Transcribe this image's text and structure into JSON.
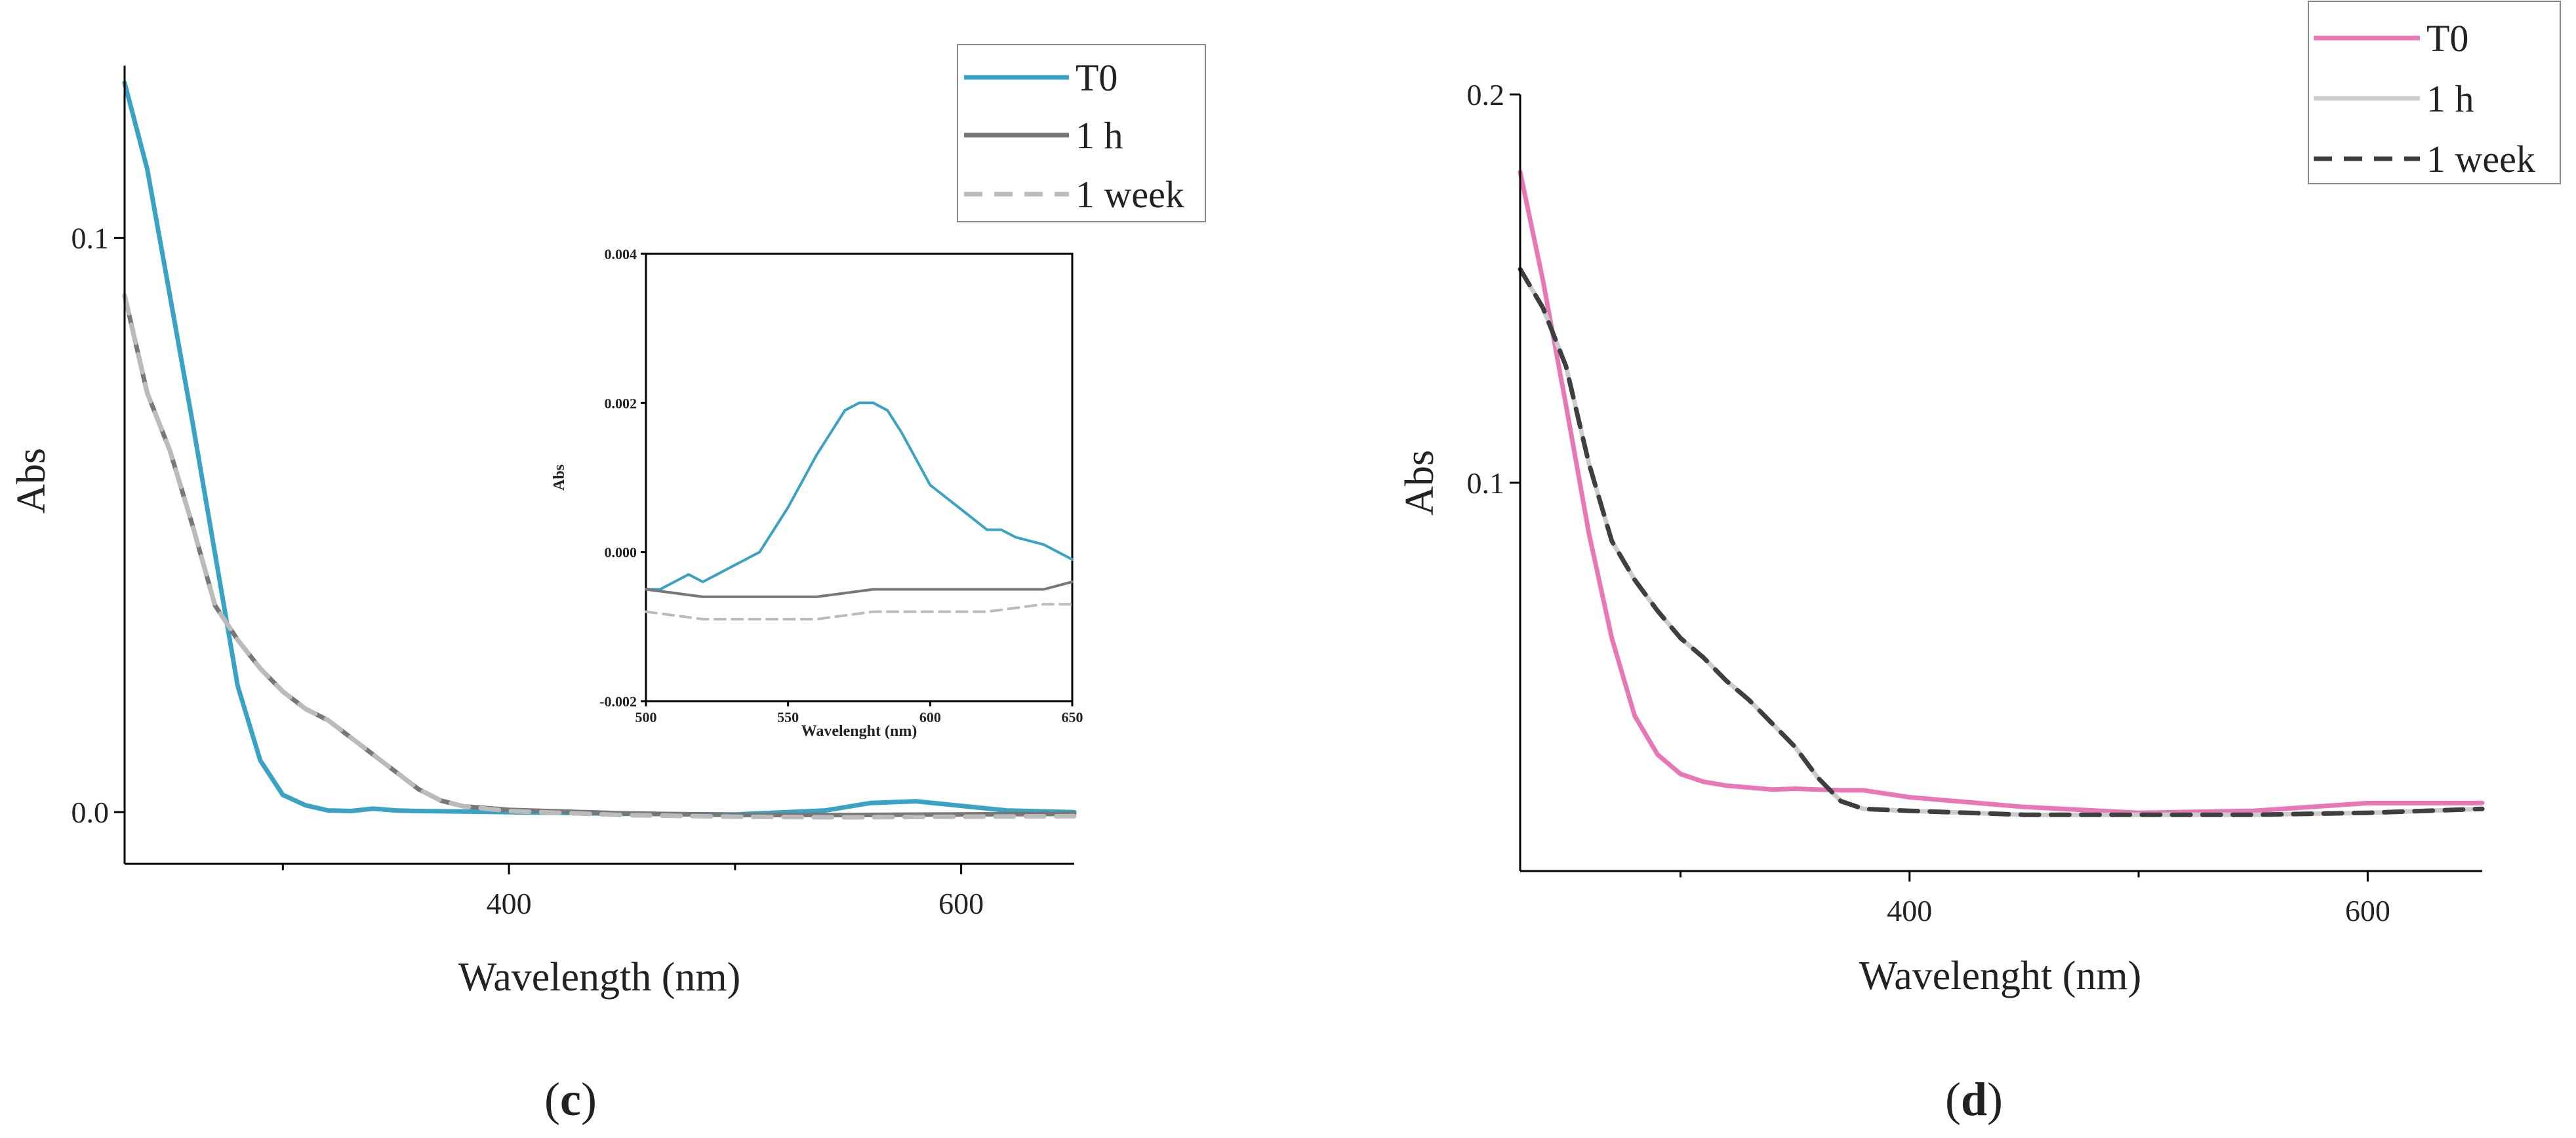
{
  "chart_data": [
    {
      "type": "line",
      "panel_label": "(c)",
      "panel_label_parts": [
        "(",
        "c",
        ")"
      ],
      "title": "",
      "xlabel": "Wavelength (nm)",
      "ylabel": "Abs",
      "xlim": [
        230,
        650
      ],
      "ylim": [
        -0.009,
        0.13
      ],
      "xticks": [
        400,
        600
      ],
      "xtick_labels": [
        "400",
        "600"
      ],
      "xminor": [
        300,
        500
      ],
      "yticks": [
        0.0,
        0.1
      ],
      "ytick_labels": [
        "0.0",
        "0.1"
      ],
      "grid": false,
      "legend": {
        "placement": "top-right",
        "entries": [
          "T0",
          "1 h",
          "1 week"
        ]
      },
      "series": [
        {
          "name": "T0",
          "color": "#3aa3c4",
          "dash": "solid",
          "x": [
            230,
            240,
            250,
            260,
            270,
            280,
            290,
            300,
            310,
            320,
            330,
            340,
            350,
            360,
            380,
            400,
            450,
            500,
            540,
            560,
            580,
            600,
            620,
            650
          ],
          "values": [
            0.127,
            0.112,
            0.09,
            0.068,
            0.045,
            0.022,
            0.009,
            0.003,
            0.0012,
            0.0003,
            0.0002,
            0.0006,
            0.0003,
            0.0002,
            0.0001,
            0.0,
            -0.0003,
            -0.0004,
            0.0003,
            0.0016,
            0.0019,
            0.0011,
            0.0003,
            0.0
          ]
        },
        {
          "name": "1 h",
          "color": "#777777",
          "dash": "solid",
          "x": [
            230,
            240,
            250,
            260,
            270,
            280,
            290,
            300,
            310,
            320,
            330,
            340,
            350,
            360,
            370,
            380,
            400,
            450,
            500,
            550,
            600,
            650
          ],
          "values": [
            0.09,
            0.073,
            0.063,
            0.05,
            0.036,
            0.03,
            0.025,
            0.021,
            0.018,
            0.016,
            0.013,
            0.01,
            0.007,
            0.004,
            0.002,
            0.001,
            0.0004,
            -0.0002,
            -0.0005,
            -0.0005,
            -0.0004,
            -0.0003
          ]
        },
        {
          "name": "1 week",
          "color": "#bbbbbb",
          "dash": "dashed",
          "x": [
            230,
            240,
            250,
            260,
            270,
            280,
            290,
            300,
            310,
            320,
            330,
            340,
            350,
            360,
            370,
            380,
            400,
            450,
            500,
            550,
            600,
            650
          ],
          "values": [
            0.09,
            0.073,
            0.063,
            0.05,
            0.036,
            0.03,
            0.025,
            0.021,
            0.018,
            0.016,
            0.013,
            0.01,
            0.007,
            0.004,
            0.002,
            0.001,
            0.0002,
            -0.0005,
            -0.0008,
            -0.0009,
            -0.0008,
            -0.0007
          ]
        }
      ],
      "inset": {
        "type": "line",
        "xlabel": "Wavelenght (nm)",
        "ylabel": "Abs",
        "xlim": [
          500,
          650
        ],
        "ylim": [
          -0.002,
          0.004
        ],
        "xticks": [
          500,
          550,
          600,
          650
        ],
        "xtick_labels": [
          "500",
          "550",
          "600",
          "650"
        ],
        "yticks": [
          -0.002,
          0.0,
          0.002,
          0.004
        ],
        "ytick_labels": [
          "-0.002",
          "0.000",
          "0.002",
          "0.004"
        ],
        "series": [
          {
            "name": "T0",
            "color": "#3aa3c4",
            "dash": "solid",
            "x": [
              500,
              505,
              510,
              515,
              520,
              525,
              530,
              540,
              550,
              560,
              570,
              575,
              580,
              585,
              590,
              600,
              610,
              620,
              625,
              630,
              640,
              650
            ],
            "values": [
              -0.0005,
              -0.0005,
              -0.0004,
              -0.0003,
              -0.0004,
              -0.0003,
              -0.0002,
              0.0,
              0.0006,
              0.0013,
              0.0019,
              0.002,
              0.002,
              0.0019,
              0.0016,
              0.0009,
              0.0006,
              0.0003,
              0.0003,
              0.0002,
              0.0001,
              -0.0001
            ]
          },
          {
            "name": "1 h",
            "color": "#777777",
            "dash": "solid",
            "x": [
              500,
              520,
              540,
              560,
              580,
              600,
              620,
              640,
              650
            ],
            "values": [
              -0.0005,
              -0.0006,
              -0.0006,
              -0.0006,
              -0.0005,
              -0.0005,
              -0.0005,
              -0.0005,
              -0.0004
            ]
          },
          {
            "name": "1 week",
            "color": "#bbbbbb",
            "dash": "dashed",
            "x": [
              500,
              520,
              540,
              560,
              580,
              600,
              620,
              640,
              650
            ],
            "values": [
              -0.0008,
              -0.0009,
              -0.0009,
              -0.0009,
              -0.0008,
              -0.0008,
              -0.0008,
              -0.0007,
              -0.0007
            ]
          }
        ]
      }
    },
    {
      "type": "line",
      "panel_label": "(d)",
      "panel_label_parts": [
        "(",
        "d",
        ")"
      ],
      "title": "",
      "xlabel": "Wavelenght (nm)",
      "ylabel": "Abs",
      "xlim": [
        230,
        650
      ],
      "ylim": [
        -0.0,
        0.2
      ],
      "xticks": [
        400,
        600
      ],
      "xtick_labels": [
        "400",
        "600"
      ],
      "xminor": [
        300,
        500
      ],
      "yticks": [
        0.1,
        0.2
      ],
      "ytick_labels": [
        "0.1",
        "0.2"
      ],
      "grid": false,
      "legend": {
        "placement": "top-right",
        "entries": [
          "T0",
          "1 h",
          "1 week"
        ]
      },
      "series": [
        {
          "name": "T0",
          "color": "#e877b8",
          "dash": "solid",
          "x": [
            230,
            240,
            250,
            260,
            270,
            280,
            290,
            300,
            310,
            320,
            330,
            340,
            350,
            360,
            370,
            380,
            400,
            450,
            500,
            550,
            600,
            650
          ],
          "values": [
            0.18,
            0.152,
            0.12,
            0.087,
            0.06,
            0.04,
            0.03,
            0.025,
            0.023,
            0.022,
            0.0215,
            0.021,
            0.0212,
            0.021,
            0.0208,
            0.0208,
            0.019,
            0.0165,
            0.015,
            0.0155,
            0.0175,
            0.0175
          ]
        },
        {
          "name": "1 h",
          "color": "#cccccc",
          "dash": "solid",
          "x": [
            230,
            240,
            250,
            260,
            270,
            280,
            290,
            300,
            310,
            320,
            330,
            340,
            350,
            360,
            370,
            380,
            400,
            450,
            500,
            550,
            600,
            650
          ],
          "values": [
            0.155,
            0.145,
            0.13,
            0.105,
            0.085,
            0.075,
            0.067,
            0.06,
            0.055,
            0.049,
            0.044,
            0.038,
            0.032,
            0.024,
            0.018,
            0.016,
            0.0155,
            0.0145,
            0.0145,
            0.0145,
            0.015,
            0.016
          ]
        },
        {
          "name": "1 week",
          "color": "#3f3f3f",
          "dash": "dashed",
          "x": [
            230,
            240,
            250,
            260,
            270,
            280,
            290,
            300,
            310,
            320,
            330,
            340,
            350,
            360,
            370,
            380,
            400,
            450,
            500,
            550,
            600,
            650
          ],
          "values": [
            0.155,
            0.145,
            0.13,
            0.105,
            0.085,
            0.075,
            0.067,
            0.06,
            0.055,
            0.049,
            0.044,
            0.038,
            0.032,
            0.024,
            0.018,
            0.016,
            0.0155,
            0.0145,
            0.0145,
            0.0145,
            0.015,
            0.016
          ]
        }
      ]
    }
  ]
}
